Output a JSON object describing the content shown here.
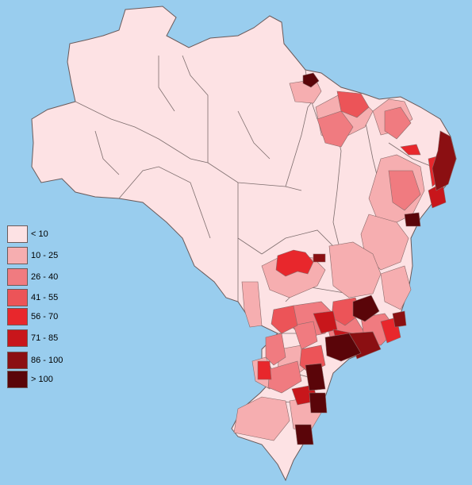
{
  "legend": {
    "items": [
      {
        "label": "< 10",
        "color": "#fde2e4"
      },
      {
        "label": "10 - 25",
        "color": "#f6aeb0"
      },
      {
        "label": "26 - 40",
        "color": "#f07b80"
      },
      {
        "label": "41 - 55",
        "color": "#ec5458"
      },
      {
        "label": "56 - 70",
        "color": "#e8272c"
      },
      {
        "label": "71 - 85",
        "color": "#c8161b"
      },
      {
        "label": "86 - 100",
        "color": "#8b0f12"
      },
      {
        "label": "> 100",
        "color": "#5a0509"
      }
    ]
  },
  "colors": {
    "ocean": "#99cdee",
    "border": "#6a5a5a"
  }
}
